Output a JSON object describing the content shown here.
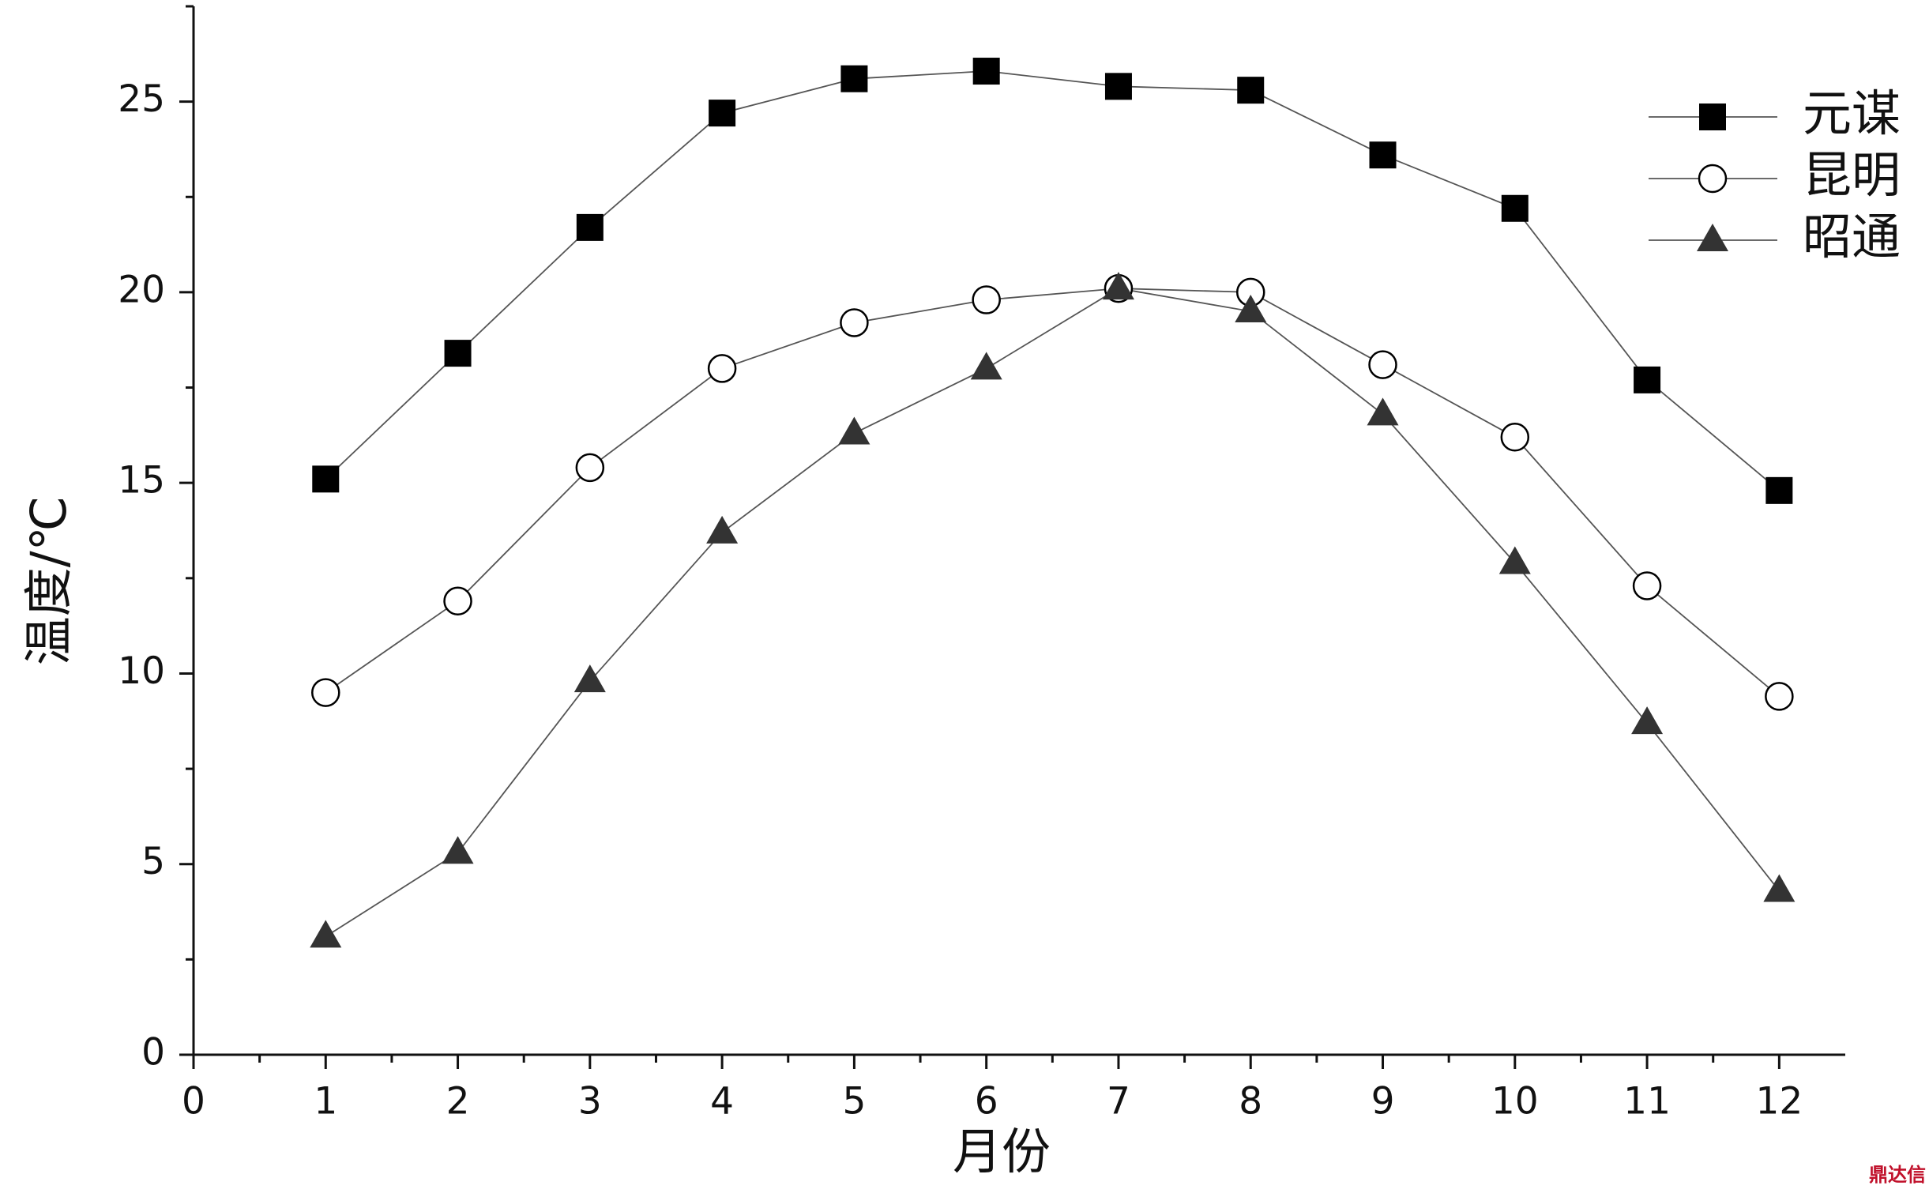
{
  "chart_data": {
    "type": "line",
    "xlabel": "月份",
    "ylabel": "温度/℃",
    "xlim": [
      0,
      12.5
    ],
    "ylim": [
      0,
      27.5
    ],
    "xticks": [
      0,
      1,
      2,
      3,
      4,
      5,
      6,
      7,
      8,
      9,
      10,
      11,
      12
    ],
    "yticks": [
      0,
      5,
      10,
      15,
      20,
      25
    ],
    "x": [
      1,
      2,
      3,
      4,
      5,
      6,
      7,
      8,
      9,
      10,
      11,
      12
    ],
    "legend": "upper right",
    "series": [
      {
        "name": "元谋",
        "color": "#000000",
        "marker": "square",
        "values": [
          15.1,
          18.4,
          21.7,
          24.7,
          25.6,
          25.8,
          25.4,
          25.3,
          23.6,
          22.2,
          17.7,
          14.8
        ]
      },
      {
        "name": "昆明",
        "color": "#000000",
        "marker": "circle",
        "values": [
          9.5,
          11.9,
          15.4,
          18.0,
          19.2,
          19.8,
          20.1,
          20.0,
          18.1,
          16.2,
          12.3,
          9.4
        ]
      },
      {
        "name": "昭通",
        "color": "#333333",
        "marker": "triangle",
        "values": [
          3.1,
          5.3,
          9.8,
          13.7,
          16.3,
          18.0,
          20.1,
          19.5,
          16.8,
          12.9,
          8.7,
          4.3
        ]
      }
    ],
    "watermark": "鼎达信"
  }
}
